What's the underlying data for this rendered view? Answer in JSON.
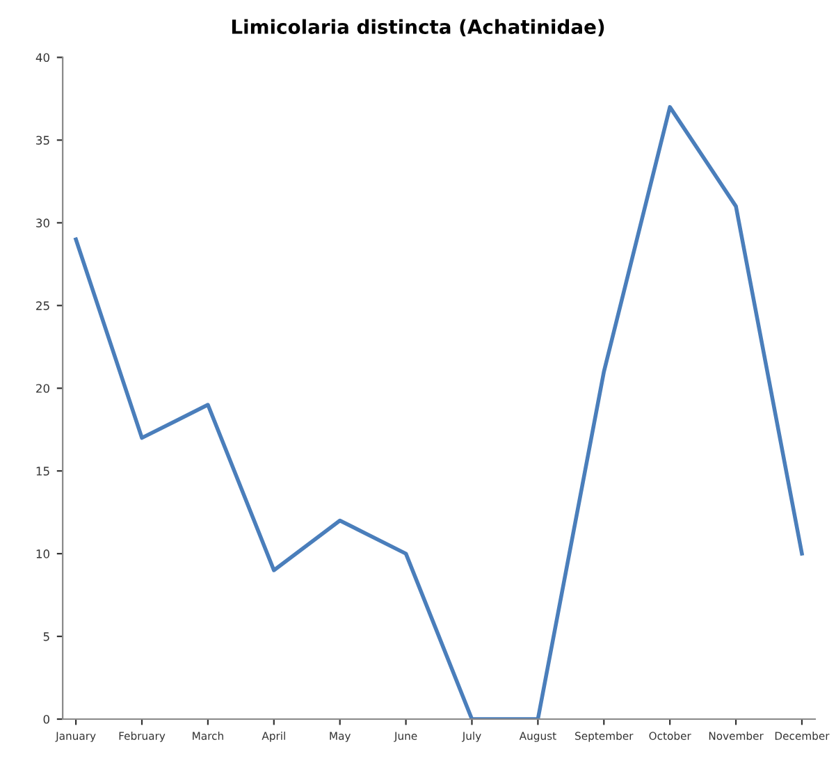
{
  "chart_data": {
    "type": "line",
    "title": "Limicolaria distincta (Achatinidae)",
    "categories": [
      "January",
      "February",
      "March",
      "April",
      "May",
      "June",
      "July",
      "August",
      "September",
      "October",
      "November",
      "December"
    ],
    "series": [
      {
        "color": "#4a7ebb",
        "values": [
          29,
          17,
          19,
          9,
          12,
          10,
          0,
          0,
          21,
          37,
          31,
          10
        ]
      }
    ],
    "ylim": [
      0,
      40
    ],
    "yticks": [
      0,
      5,
      10,
      15,
      20,
      25,
      30,
      35,
      40
    ],
    "grid": false,
    "legend": false,
    "marker": "none",
    "line_style": "solid"
  }
}
